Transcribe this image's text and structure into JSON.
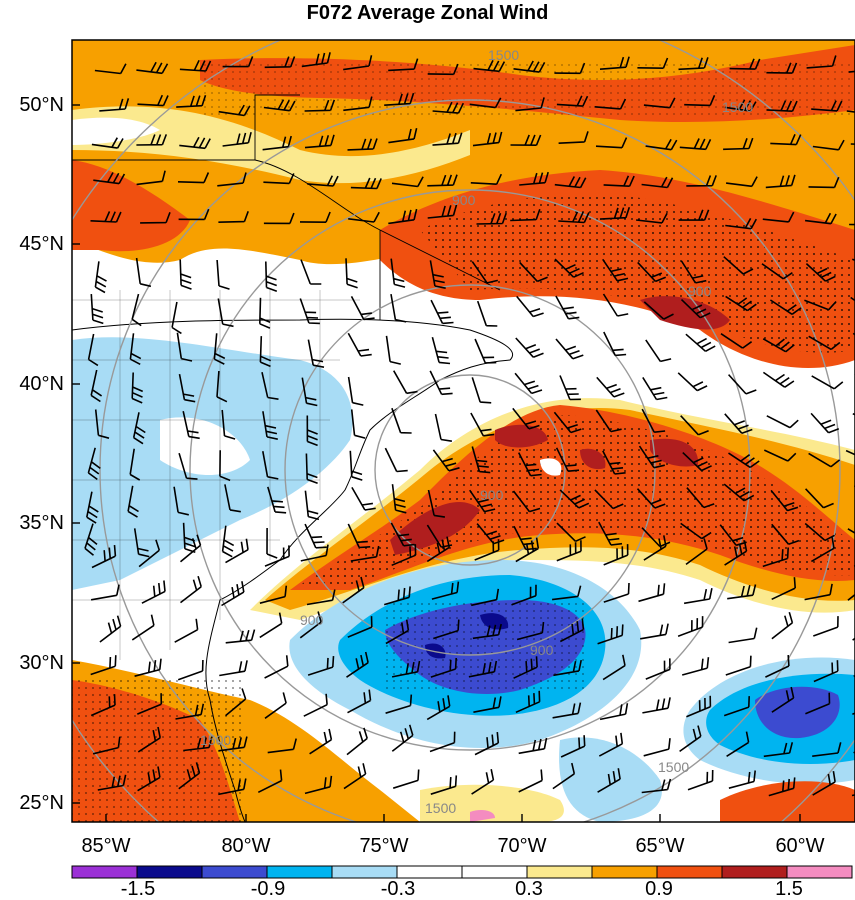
{
  "title": "F072 Average Zonal Wind",
  "lat_labels": [
    "50°N",
    "45°N",
    "40°N",
    "35°N",
    "30°N",
    "25°N"
  ],
  "lon_labels": [
    "85°W",
    "80°W",
    "75°W",
    "70°W",
    "65°W",
    "60°W"
  ],
  "contour_labels": [
    "1500",
    "1500",
    "900",
    "900",
    "900",
    "900",
    "900",
    "1500",
    "1500",
    "1500"
  ],
  "colorbar": {
    "colors": [
      "#9b30d6",
      "#0a0a8c",
      "#3c4bd0",
      "#00b4f0",
      "#a8dcf5",
      "#ffffff",
      "#ffffff",
      "#fbe98e",
      "#f7a000",
      "#f05010",
      "#b01e1e",
      "#f48cc0"
    ],
    "tick_labels": [
      "-1.5",
      "-0.9",
      "-0.3",
      "0.3",
      "0.9",
      "1.5"
    ]
  },
  "palette": {
    "light_blue": "#a8dcf5",
    "blue": "#00b4f0",
    "dark_blue": "#3c4bd0",
    "yellow": "#fbe98e",
    "orange": "#f7a000",
    "red_orange": "#f05010",
    "dark_red": "#b01e1e",
    "pink": "#f48cc0"
  }
}
